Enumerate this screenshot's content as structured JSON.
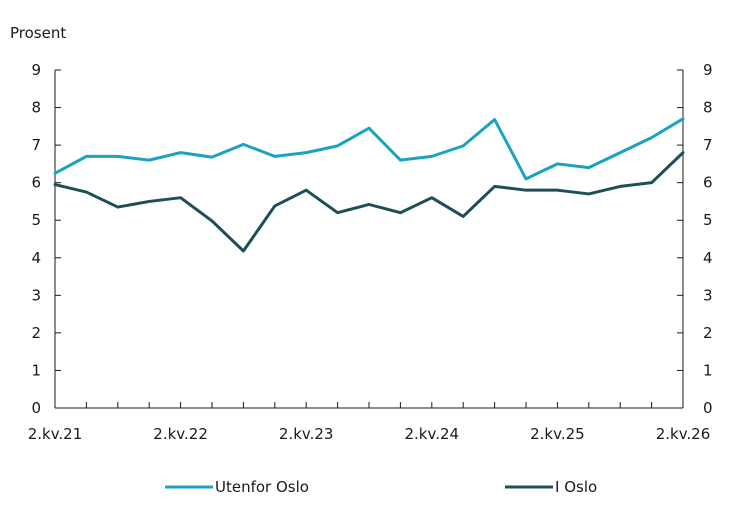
{
  "chart_data": {
    "type": "line",
    "title": "",
    "ylabel": "Prosent",
    "xlabel": "",
    "ylim": [
      0,
      9
    ],
    "yticks": [
      0,
      1,
      2,
      3,
      4,
      5,
      6,
      7,
      8,
      9
    ],
    "grid": false,
    "legend_position": "bottom",
    "x": [
      "2.kv.21",
      "3.kv.21",
      "4.kv.21",
      "1.kv.22",
      "2.kv.22",
      "3.kv.22",
      "4.kv.22",
      "1.kv.23",
      "2.kv.23",
      "3.kv.23",
      "4.kv.23",
      "1.kv.24",
      "2.kv.24",
      "3.kv.24",
      "4.kv.24",
      "1.kv.25",
      "2.kv.25",
      "3.kv.25",
      "4.kv.25",
      "1.kv.26",
      "2.kv.26"
    ],
    "x_tick_labels": [
      {
        "index": 0,
        "label": "2.kv.21"
      },
      {
        "index": 4,
        "label": "2.kv.22"
      },
      {
        "index": 8,
        "label": "2.kv.23"
      },
      {
        "index": 12,
        "label": "2.kv.24"
      },
      {
        "index": 16,
        "label": "2.kv.25"
      },
      {
        "index": 20,
        "label": "2.kv.26"
      }
    ],
    "series": [
      {
        "name": "Utenfor Oslo",
        "color": "#1aa3c0",
        "values": [
          6.25,
          6.7,
          6.7,
          6.6,
          6.8,
          6.68,
          7.02,
          6.7,
          6.8,
          6.98,
          7.45,
          6.6,
          6.7,
          6.98,
          7.68,
          6.1,
          6.5,
          6.4,
          6.8,
          7.2,
          7.7
        ]
      },
      {
        "name": "I Oslo",
        "color": "#1d4f59",
        "values": [
          5.95,
          5.75,
          5.35,
          5.5,
          5.6,
          4.98,
          4.18,
          5.38,
          5.8,
          5.2,
          5.42,
          5.2,
          5.6,
          5.1,
          5.9,
          5.8,
          5.8,
          5.7,
          5.9,
          6.0,
          6.8
        ]
      }
    ]
  }
}
